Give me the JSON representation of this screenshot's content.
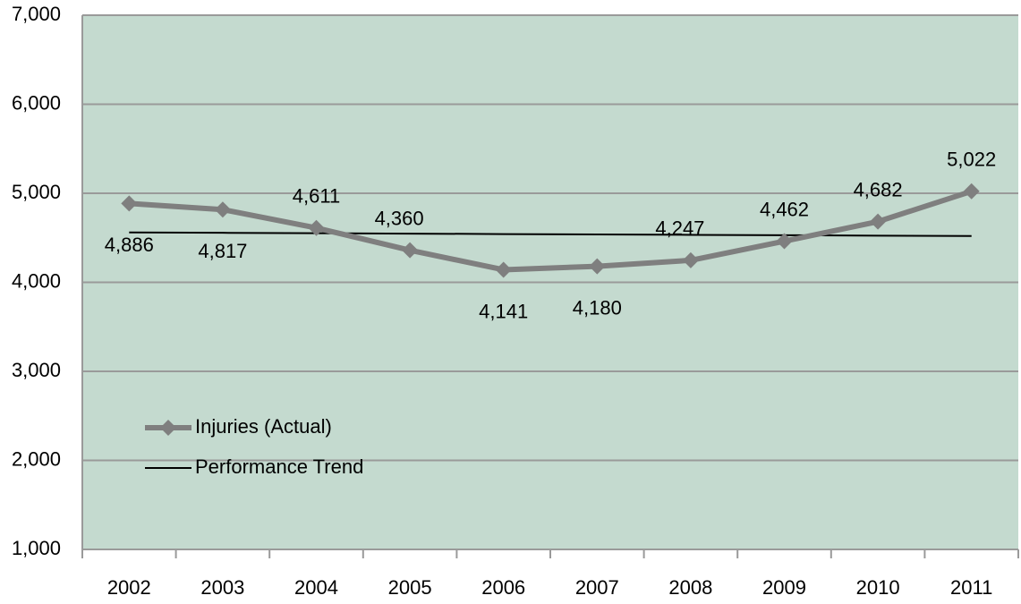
{
  "chart_data": {
    "type": "line",
    "categories": [
      "2002",
      "2003",
      "2004",
      "2005",
      "2006",
      "2007",
      "2008",
      "2009",
      "2010",
      "2011"
    ],
    "series": [
      {
        "name": "Injuries (Actual)",
        "color": "#7f7f7f",
        "values": [
          4886,
          4817,
          4611,
          4360,
          4141,
          4180,
          4247,
          4462,
          4682,
          5022
        ],
        "value_labels": [
          "4,886",
          "4,817",
          "4,611",
          "4,360",
          "4,141",
          "4,180",
          "4,247",
          "4,462",
          "4,682",
          "5,022"
        ]
      },
      {
        "name": "Performance Trend",
        "color": "#000000",
        "values": [
          4560,
          4556,
          4551,
          4547,
          4542,
          4538,
          4533,
          4529,
          4524,
          4520
        ]
      }
    ],
    "ylim": [
      1000,
      7000
    ],
    "yticks": [
      {
        "value": 1000,
        "label": "1,000"
      },
      {
        "value": 2000,
        "label": "2,000"
      },
      {
        "value": 3000,
        "label": "3,000"
      },
      {
        "value": 4000,
        "label": "4,000"
      },
      {
        "value": 5000,
        "label": "5,000"
      },
      {
        "value": 6000,
        "label": "6,000"
      },
      {
        "value": 7000,
        "label": "7,000"
      }
    ],
    "grid": true
  }
}
